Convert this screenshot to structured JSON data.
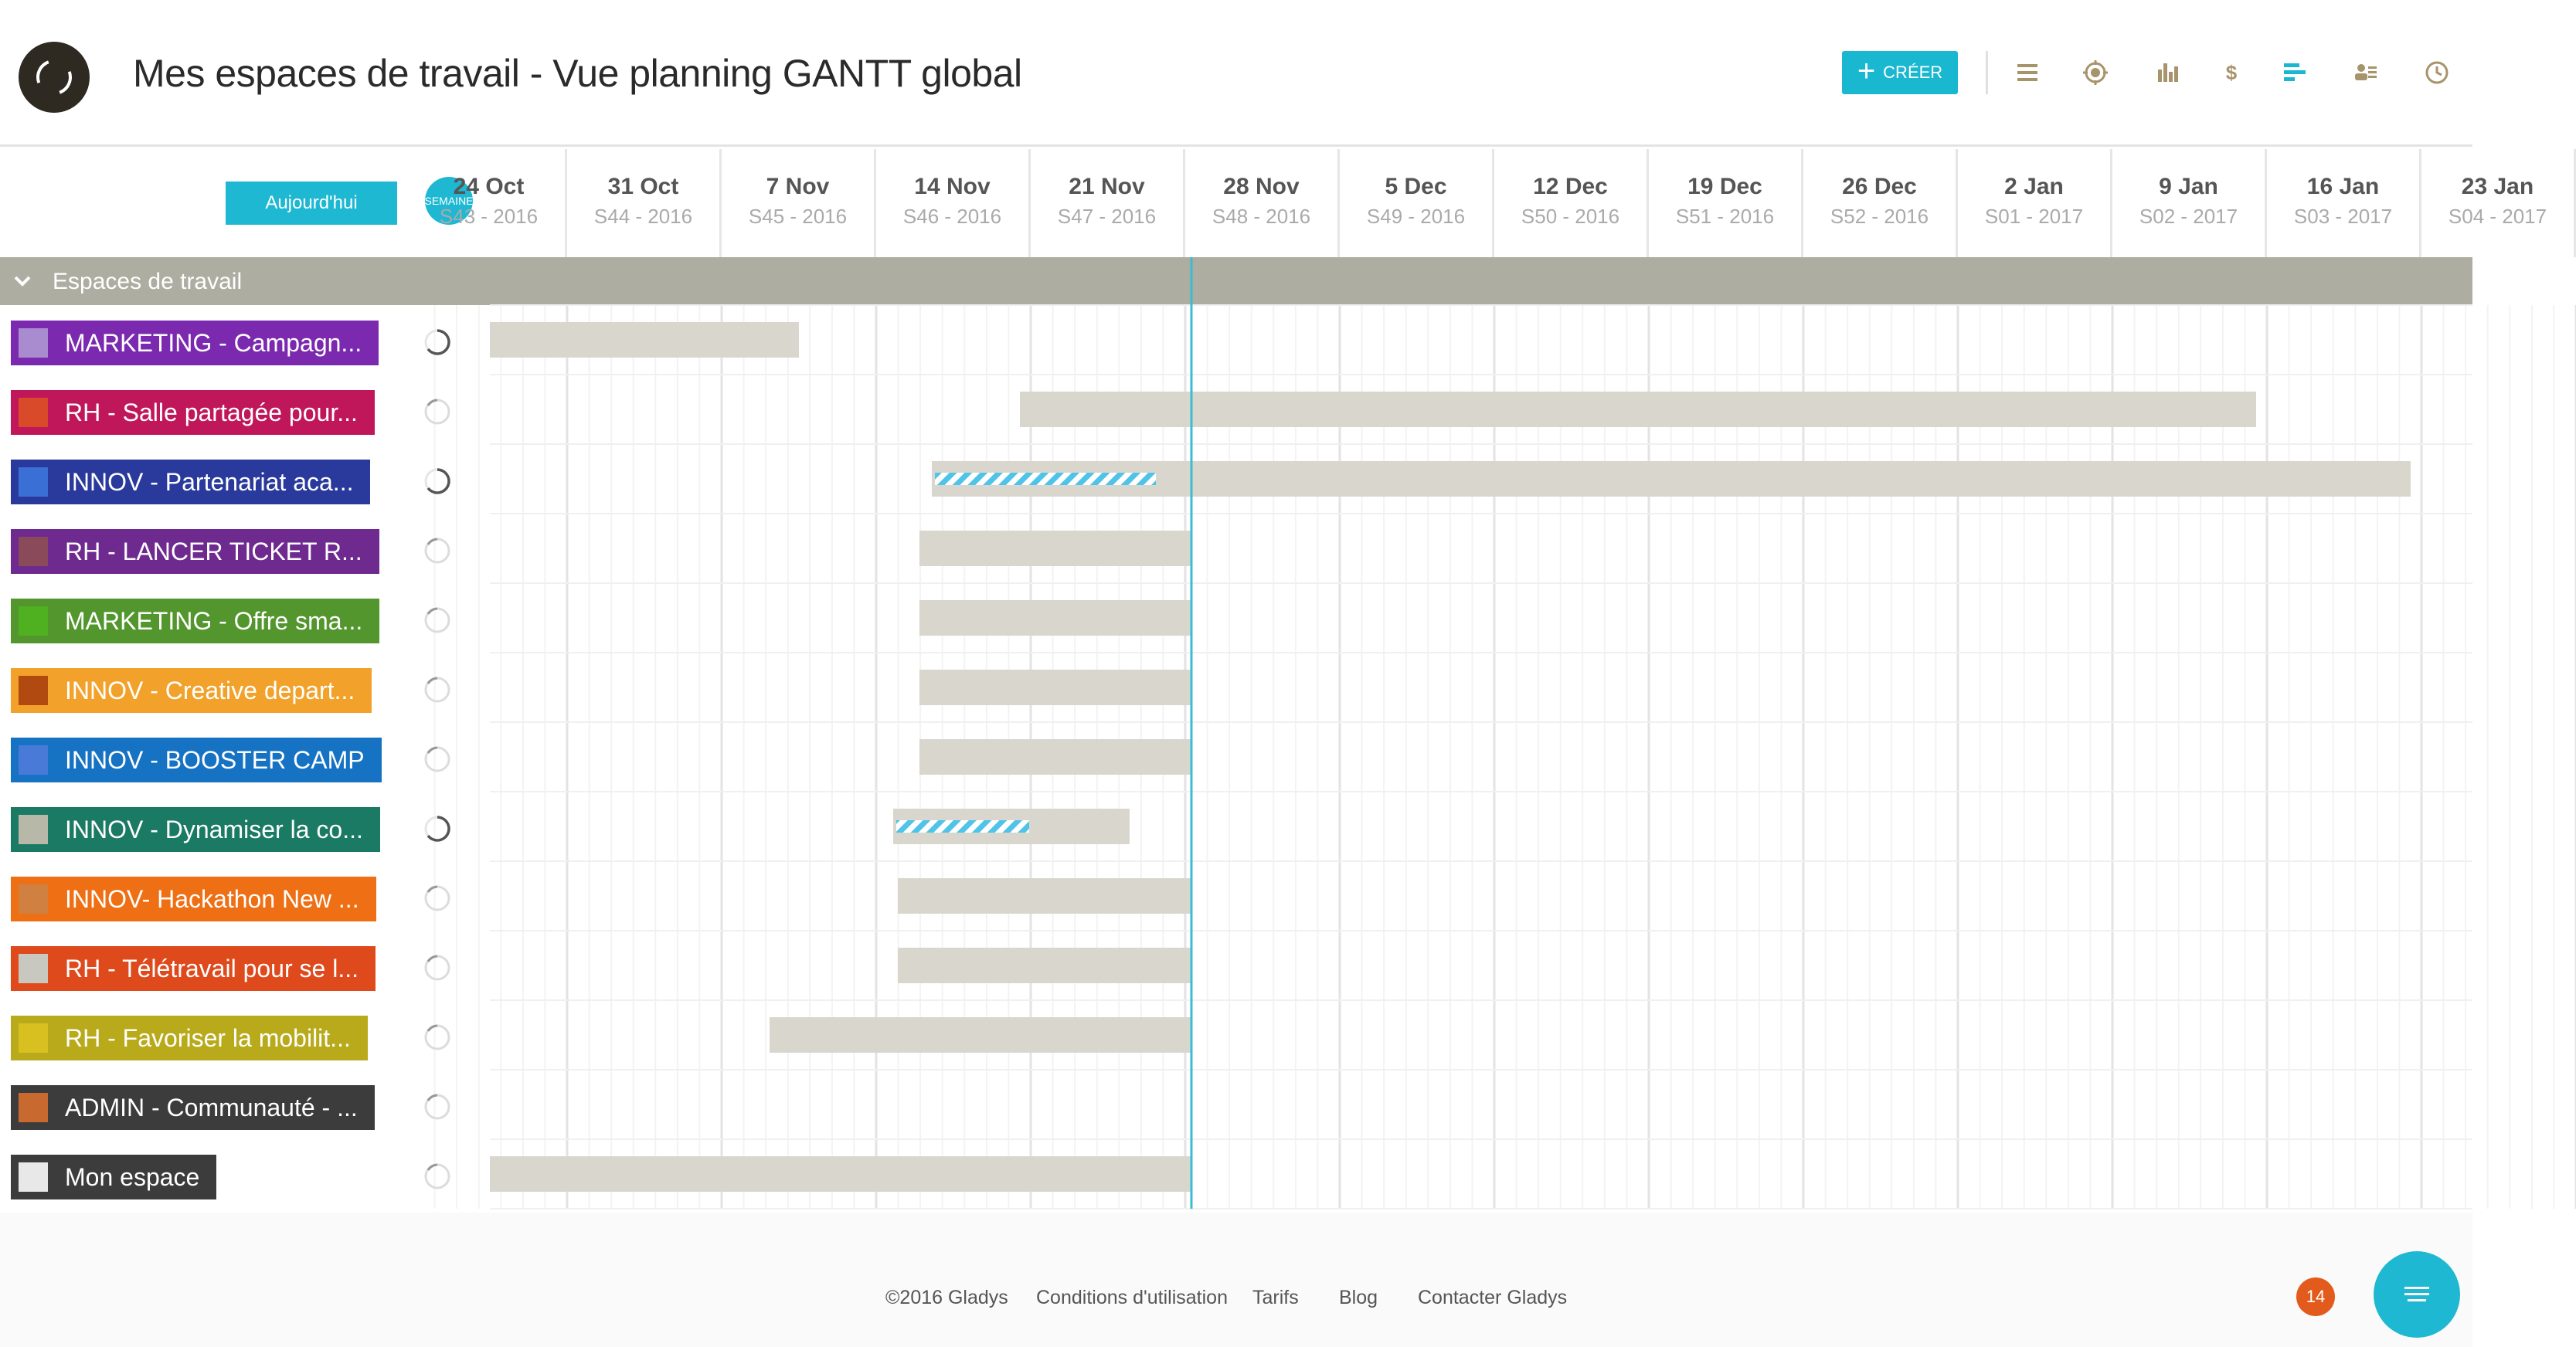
{
  "header": {
    "title": "Mes espaces de travail - Vue planning GANTT global",
    "create_label": "CRÉER",
    "icons": [
      "list-icon",
      "target-icon",
      "bar-chart-icon",
      "dollar-icon",
      "gantt-icon",
      "team-icon",
      "clock-icon"
    ],
    "accent_color": "#19b7d0"
  },
  "timeline": {
    "today_label": "Aujourd'hui",
    "scale_label": "SEMAINE",
    "weeks": [
      {
        "date": "24 Oct",
        "week": "S43 - 2016"
      },
      {
        "date": "31 Oct",
        "week": "S44 - 2016"
      },
      {
        "date": "7 Nov",
        "week": "S45 - 2016"
      },
      {
        "date": "14 Nov",
        "week": "S46 - 2016"
      },
      {
        "date": "21 Nov",
        "week": "S47 - 2016"
      },
      {
        "date": "28 Nov",
        "week": "S48 - 2016"
      },
      {
        "date": "5 Dec",
        "week": "S49 - 2016"
      },
      {
        "date": "12 Dec",
        "week": "S50 - 2016"
      },
      {
        "date": "19 Dec",
        "week": "S51 - 2016"
      },
      {
        "date": "26 Dec",
        "week": "S52 - 2016"
      },
      {
        "date": "2 Jan",
        "week": "S01 - 2017"
      },
      {
        "date": "9 Jan",
        "week": "S02 - 2017"
      },
      {
        "date": "16 Jan",
        "week": "S03 - 2017"
      },
      {
        "date": "23 Jan",
        "week": "S04 - 2017"
      }
    ],
    "today_week": 4.54
  },
  "group": {
    "label": "Espaces de travail"
  },
  "workspaces": [
    {
      "label": "MARKETING - Campagn...",
      "color": "#7b2ab0",
      "thumb": "#a98bd0",
      "bar_start": 0.0,
      "bar_end": 2.0,
      "progress": 0.0,
      "status": "spinner"
    },
    {
      "label": "RH - Salle partagée pour...",
      "color": "#c0175a",
      "thumb": "#d84a2a",
      "bar_start": 3.43,
      "bar_end": 11.43,
      "progress": 0.0,
      "status": "idle"
    },
    {
      "label": "INNOV - Partenariat aca...",
      "color": "#2a3a9c",
      "thumb": "#3a6fd6",
      "bar_start": 2.86,
      "bar_end": 12.43,
      "progress": 1.43,
      "status": "spinner"
    },
    {
      "label": "RH - LANCER TICKET R...",
      "color": "#6e2a8e",
      "thumb": "#8a4a5a",
      "bar_start": 2.78,
      "bar_end": 4.54,
      "progress": 0.0,
      "status": "idle"
    },
    {
      "label": "MARKETING - Offre sma...",
      "color": "#53962e",
      "thumb": "#4fb020",
      "bar_start": 2.78,
      "bar_end": 4.54,
      "progress": 0.0,
      "status": "idle"
    },
    {
      "label": "INNOV - Creative depart...",
      "color": "#f2a22a",
      "thumb": "#b04a10",
      "bar_start": 2.78,
      "bar_end": 4.54,
      "progress": 0.0,
      "status": "idle"
    },
    {
      "label": "INNOV - BOOSTER CAMP",
      "color": "#1672c2",
      "thumb": "#4a7ad8",
      "bar_start": 2.78,
      "bar_end": 4.54,
      "progress": 0.0,
      "status": "idle"
    },
    {
      "label": "INNOV - Dynamiser la co...",
      "color": "#1a7a64",
      "thumb": "#b8b8a8",
      "bar_start": 2.61,
      "bar_end": 4.14,
      "progress": 0.86,
      "status": "spinner"
    },
    {
      "label": "INNOV- Hackathon New ...",
      "color": "#ee6f14",
      "thumb": "#d08040",
      "bar_start": 2.64,
      "bar_end": 4.54,
      "progress": 0.0,
      "status": "idle"
    },
    {
      "label": "RH - Télétravail pour se l...",
      "color": "#df4a1c",
      "thumb": "#c8c8c0",
      "bar_start": 2.64,
      "bar_end": 4.54,
      "progress": 0.0,
      "status": "idle"
    },
    {
      "label": "RH - Favoriser la mobilit...",
      "color": "#b8aa1a",
      "thumb": "#d8c020",
      "bar_start": 1.81,
      "bar_end": 4.54,
      "progress": 0.0,
      "status": "idle"
    },
    {
      "label": "ADMIN - Communauté - ...",
      "color": "#3c3c3c",
      "thumb": "#c86a30",
      "bar_start": null,
      "bar_end": null,
      "progress": 0.0,
      "status": "idle"
    },
    {
      "label": "Mon espace",
      "color": "#3c3c3c",
      "thumb": "#e8e8e8",
      "bar_start": 0.0,
      "bar_end": 4.54,
      "progress": 0.0,
      "status": "idle"
    }
  ],
  "footer": {
    "copyright": "©2016 Gladys",
    "terms": "Conditions d'utilisation",
    "pricing": "Tarifs",
    "blog": "Blog",
    "contact": "Contacter Gladys",
    "notification_count": "14"
  }
}
